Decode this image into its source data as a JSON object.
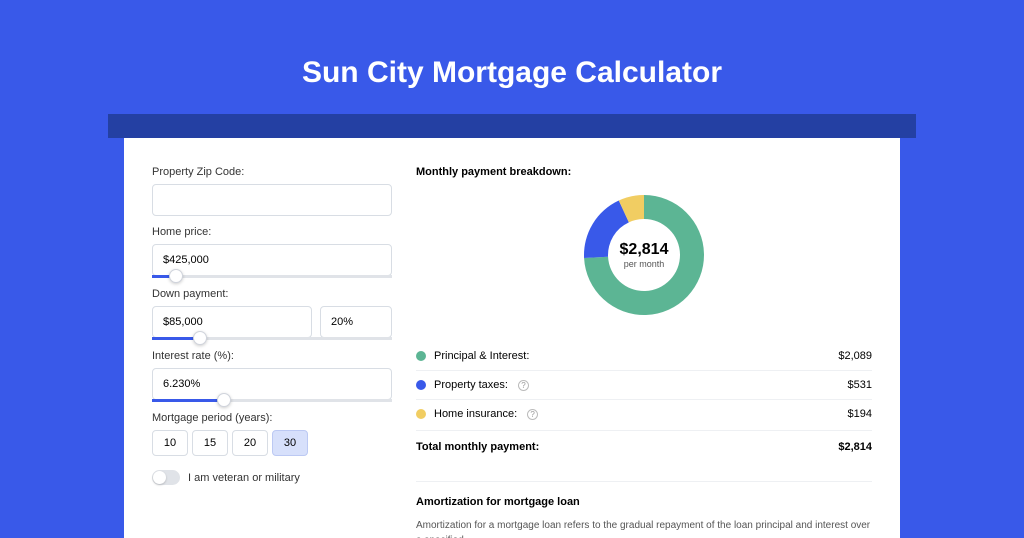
{
  "header": {
    "title": "Sun City Mortgage Calculator"
  },
  "colors": {
    "page_bg": "#3959e9",
    "shadow_bar": "#2440a3",
    "card_bg": "#ffffff",
    "slider_fill": "#3959e9",
    "period_active_bg": "#d7e0fb"
  },
  "form": {
    "zip": {
      "label": "Property Zip Code:",
      "value": ""
    },
    "home_price": {
      "label": "Home price:",
      "value": "$425,000",
      "slider_pct": 10
    },
    "down_payment": {
      "label": "Down payment:",
      "value": "$85,000",
      "pct_value": "20%",
      "slider_pct": 20
    },
    "interest": {
      "label": "Interest rate (%):",
      "value": "6.230%",
      "slider_pct": 30
    },
    "period": {
      "label": "Mortgage period (years):",
      "options": [
        "10",
        "15",
        "20",
        "30"
      ],
      "active_index": 3
    },
    "veteran": {
      "label": "I am veteran or military",
      "checked": false
    }
  },
  "breakdown": {
    "title": "Monthly payment breakdown:",
    "donut": {
      "center_value": "$2,814",
      "center_sub": "per month",
      "slices": [
        {
          "label": "Principal & Interest",
          "pct": 74.2,
          "color": "#5cb594"
        },
        {
          "label": "Property taxes",
          "pct": 18.9,
          "color": "#3959e9"
        },
        {
          "label": "Home insurance",
          "pct": 6.9,
          "color": "#f1cd62"
        }
      ],
      "inner_radius_pct": 60
    },
    "rows": [
      {
        "dot": "#5cb594",
        "label": "Principal & Interest:",
        "help": false,
        "value": "$2,089"
      },
      {
        "dot": "#3959e9",
        "label": "Property taxes:",
        "help": true,
        "value": "$531"
      },
      {
        "dot": "#f1cd62",
        "label": "Home insurance:",
        "help": true,
        "value": "$194"
      }
    ],
    "total": {
      "label": "Total monthly payment:",
      "value": "$2,814"
    }
  },
  "amortization": {
    "title": "Amortization for mortgage loan",
    "text": "Amortization for a mortgage loan refers to the gradual repayment of the loan principal and interest over a specified"
  }
}
